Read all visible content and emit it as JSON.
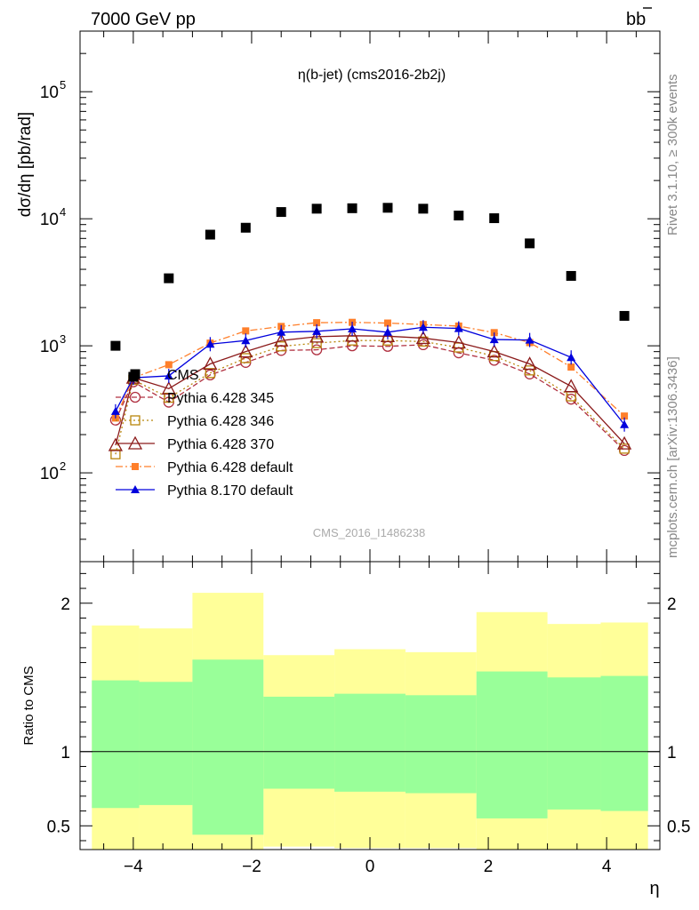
{
  "header": {
    "energy": "7000 GeV pp",
    "process_main": "b",
    "process_bar": "b"
  },
  "side_labels": {
    "rivet": "Rivet 3.1.10, ≥ 300k events",
    "mcplots": "mcplots.cern.ch [arXiv:1306.3436]"
  },
  "chart_data": [
    {
      "type": "scatter",
      "title": "η(b-jet) (cms2016-2b2j)",
      "watermark": "CMS_2016_I1486238",
      "ylabel": "dσ/dη [pb/rad]",
      "yscale": "log",
      "ylim": [
        20,
        300000
      ],
      "xlim": [
        -4.9,
        4.9
      ],
      "y_ticks": [
        {
          "value": 100,
          "base": "10",
          "exp": "2"
        },
        {
          "value": 1000,
          "base": "10",
          "exp": "3"
        },
        {
          "value": 10000,
          "base": "10",
          "exp": "4"
        },
        {
          "value": 100000,
          "base": "10",
          "exp": "5"
        }
      ],
      "x": [
        -4.3,
        -4.0,
        -3.4,
        -2.7,
        -2.1,
        -1.5,
        -0.9,
        -0.3,
        0.3,
        0.9,
        1.5,
        2.1,
        2.7,
        3.4,
        4.3
      ],
      "series": [
        {
          "name": "CMS",
          "color": "#000000",
          "marker": "square",
          "values": [
            1000,
            570,
            3400,
            7500,
            8500,
            11300,
            12000,
            12100,
            12200,
            12000,
            10600,
            10100,
            6400,
            3550,
            1720
          ]
        },
        {
          "name": "Pythia 6.428 345",
          "color": "#b03040",
          "marker": "circle-open",
          "dash": "6,3",
          "values": [
            260,
            520,
            360,
            590,
            740,
            920,
            930,
            1000,
            990,
            1020,
            880,
            770,
            600,
            380,
            150
          ]
        },
        {
          "name": "Pythia 6.428 346",
          "color": "#b8860b",
          "marker": "square-open",
          "dash": "2,3",
          "values": [
            140,
            540,
            390,
            610,
            800,
            990,
            1050,
            1100,
            1100,
            1080,
            970,
            830,
            640,
            400,
            155
          ]
        },
        {
          "name": "Pythia 6.428 370",
          "color": "#8b1a1a",
          "marker": "triangle-open",
          "dash": "",
          "values": [
            165,
            560,
            460,
            720,
            900,
            1100,
            1180,
            1200,
            1190,
            1150,
            1060,
            900,
            720,
            480,
            170
          ]
        },
        {
          "name": "Pythia 6.428 default",
          "color": "#ff7f2a",
          "marker": "square-filled",
          "dash": "8,3,2,3",
          "values": [
            270,
            560,
            710,
            1050,
            1310,
            1420,
            1520,
            1530,
            1510,
            1470,
            1430,
            1270,
            1060,
            680,
            280
          ]
        },
        {
          "name": "Pythia 8.170 default",
          "color": "#0000dd",
          "marker": "triangle-filled",
          "dash": "",
          "values": [
            305,
            560,
            580,
            1030,
            1100,
            1280,
            1300,
            1360,
            1280,
            1400,
            1370,
            1120,
            1110,
            810,
            240
          ]
        }
      ]
    },
    {
      "type": "area",
      "ylabel": "Ratio to CMS",
      "xlabel": "η",
      "ylim": [
        0.34,
        2.28
      ],
      "xlim": [
        -4.9,
        4.9
      ],
      "x_ticks": [
        {
          "value": -4,
          "label": "−4"
        },
        {
          "value": -2,
          "label": "−2"
        },
        {
          "value": 0,
          "label": "0"
        },
        {
          "value": 2,
          "label": "2"
        },
        {
          "value": 4,
          "label": "4"
        }
      ],
      "y_ticks": [
        {
          "value": 0.5,
          "label": "0.5"
        },
        {
          "value": 1,
          "label": "1"
        },
        {
          "value": 2,
          "label": "2"
        }
      ],
      "bins": [
        {
          "lo": -4.7,
          "hi": -3.9,
          "in_lo": 0.62,
          "in_hi": 1.48,
          "out_lo": 0.34,
          "out_hi": 1.85
        },
        {
          "lo": -3.9,
          "hi": -3.0,
          "in_lo": 0.64,
          "in_hi": 1.47,
          "out_lo": 0.34,
          "out_hi": 1.83
        },
        {
          "lo": -3.0,
          "hi": -1.8,
          "in_lo": 0.44,
          "in_hi": 1.62,
          "out_lo": 0.34,
          "out_hi": 2.07
        },
        {
          "lo": -1.8,
          "hi": -0.6,
          "in_lo": 0.75,
          "in_hi": 1.37,
          "out_lo": 0.36,
          "out_hi": 1.65
        },
        {
          "lo": -0.6,
          "hi": 0.6,
          "in_lo": 0.73,
          "in_hi": 1.39,
          "out_lo": 0.35,
          "out_hi": 1.69
        },
        {
          "lo": 0.6,
          "hi": 1.8,
          "in_lo": 0.72,
          "in_hi": 1.38,
          "out_lo": 0.35,
          "out_hi": 1.67
        },
        {
          "lo": 1.8,
          "hi": 3.0,
          "in_lo": 0.55,
          "in_hi": 1.54,
          "out_lo": 0.34,
          "out_hi": 1.94
        },
        {
          "lo": 3.0,
          "hi": 3.9,
          "in_lo": 0.61,
          "in_hi": 1.5,
          "out_lo": 0.34,
          "out_hi": 1.86
        },
        {
          "lo": 3.9,
          "hi": 4.7,
          "in_lo": 0.6,
          "in_hi": 1.51,
          "out_lo": 0.34,
          "out_hi": 1.87
        }
      ],
      "reference_line": 1,
      "colors": {
        "inner": "#99ff99",
        "outer": "#ffff99"
      }
    }
  ]
}
